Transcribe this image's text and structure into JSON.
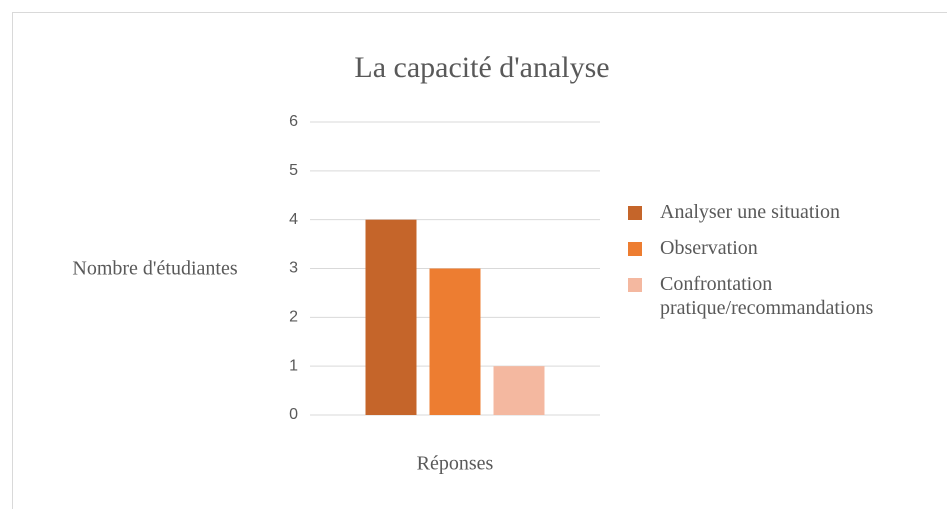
{
  "chart_data": {
    "type": "bar",
    "title": "La capacité d'analyse",
    "y_label": "Nombre d'étudiantes",
    "categories": [
      "Réponses"
    ],
    "series": [
      {
        "name": "Analyser une situation",
        "color": "#c5652a",
        "values": [
          4
        ]
      },
      {
        "name": "Observation",
        "color": "#ed7d31",
        "values": [
          3
        ]
      },
      {
        "name": "Confrontation pratique/recommandations",
        "color": "#f4b8a0",
        "values": [
          1
        ]
      }
    ],
    "ylim": [
      0,
      6
    ],
    "yticks": [
      0,
      1,
      2,
      3,
      4,
      5,
      6
    ],
    "grid": true,
    "legend": "right"
  }
}
